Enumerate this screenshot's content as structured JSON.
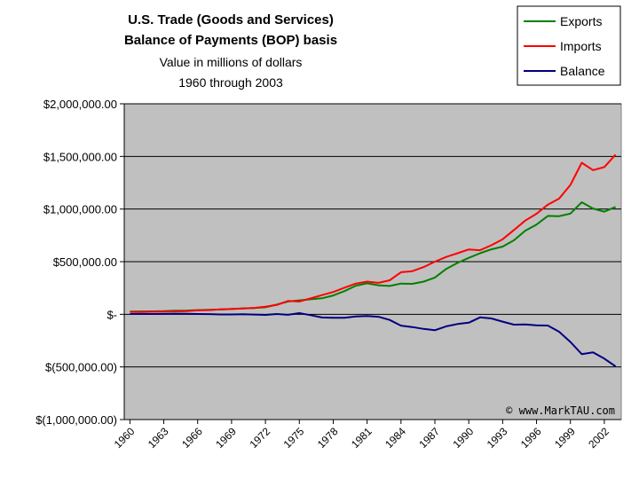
{
  "chart_data": {
    "type": "line",
    "title": "U.S. Trade (Goods and Services)",
    "title_line2": "Balance of Payments (BOP) basis",
    "subtitle": "Value in millions of dollars",
    "subtitle_line2": "1960 through 2003",
    "credit": "© www.MarkTAU.com",
    "legend_position": "top-right",
    "ylim": [
      -1000000,
      2000000
    ],
    "y_ticks": [
      2000000,
      1500000,
      1000000,
      500000,
      0,
      -500000,
      -1000000
    ],
    "y_tick_labels": [
      "$2,000,000.00",
      "$1,500,000.00",
      "$1,000,000.00",
      "$500,000.00",
      "$-",
      "$(500,000.00)",
      "$(1,000,000.00)"
    ],
    "x_tick_labels": [
      "1960",
      "1963",
      "1966",
      "1969",
      "1972",
      "1975",
      "1978",
      "1981",
      "1984",
      "1987",
      "1990",
      "1993",
      "1996",
      "1999",
      "2002"
    ],
    "x": [
      1960,
      1961,
      1962,
      1963,
      1964,
      1965,
      1966,
      1967,
      1968,
      1969,
      1970,
      1971,
      1972,
      1973,
      1974,
      1975,
      1976,
      1977,
      1978,
      1979,
      1980,
      1981,
      1982,
      1983,
      1984,
      1985,
      1986,
      1987,
      1988,
      1989,
      1990,
      1991,
      1992,
      1993,
      1994,
      1995,
      1996,
      1997,
      1998,
      1999,
      2000,
      2001,
      2002,
      2003
    ],
    "series": [
      {
        "name": "Exports",
        "color": "#008000",
        "values": [
          26000,
          27000,
          28000,
          30000,
          34000,
          36000,
          40000,
          42000,
          46000,
          50000,
          56000,
          59000,
          67000,
          92000,
          122000,
          133000,
          143000,
          152000,
          179000,
          220000,
          272000,
          294000,
          276000,
          269000,
          292000,
          289000,
          310000,
          349000,
          431000,
          488000,
          536000,
          580000,
          617000,
          643000,
          703000,
          794000,
          852000,
          935000,
          932000,
          957000,
          1065000,
          1005000,
          975000,
          1020000
        ]
      },
      {
        "name": "Imports",
        "color": "#ff0000",
        "values": [
          23000,
          23000,
          25000,
          26000,
          28000,
          31000,
          37000,
          40000,
          47000,
          51000,
          55000,
          61000,
          73000,
          89000,
          127000,
          122000,
          151000,
          182000,
          212000,
          253000,
          292000,
          310000,
          299000,
          323000,
          400000,
          410000,
          449000,
          500000,
          545000,
          580000,
          616000,
          609000,
          656000,
          713000,
          801000,
          890000,
          955000,
          1042000,
          1099000,
          1229000,
          1440000,
          1370000,
          1398000,
          1517000
        ]
      },
      {
        "name": "Balance",
        "color": "#000080",
        "values": [
          3000,
          4000,
          3000,
          4000,
          6000,
          5000,
          3000,
          2000,
          -1000,
          -1000,
          1000,
          -2000,
          -6000,
          3000,
          -5000,
          11000,
          -8000,
          -30000,
          -33000,
          -33000,
          -20000,
          -16000,
          -23000,
          -54000,
          -108000,
          -121000,
          -139000,
          -151000,
          -114000,
          -92000,
          -80000,
          -29000,
          -39000,
          -70000,
          -98000,
          -96000,
          -104000,
          -107000,
          -166000,
          -263000,
          -378000,
          -362000,
          -421000,
          -494000
        ]
      }
    ]
  }
}
